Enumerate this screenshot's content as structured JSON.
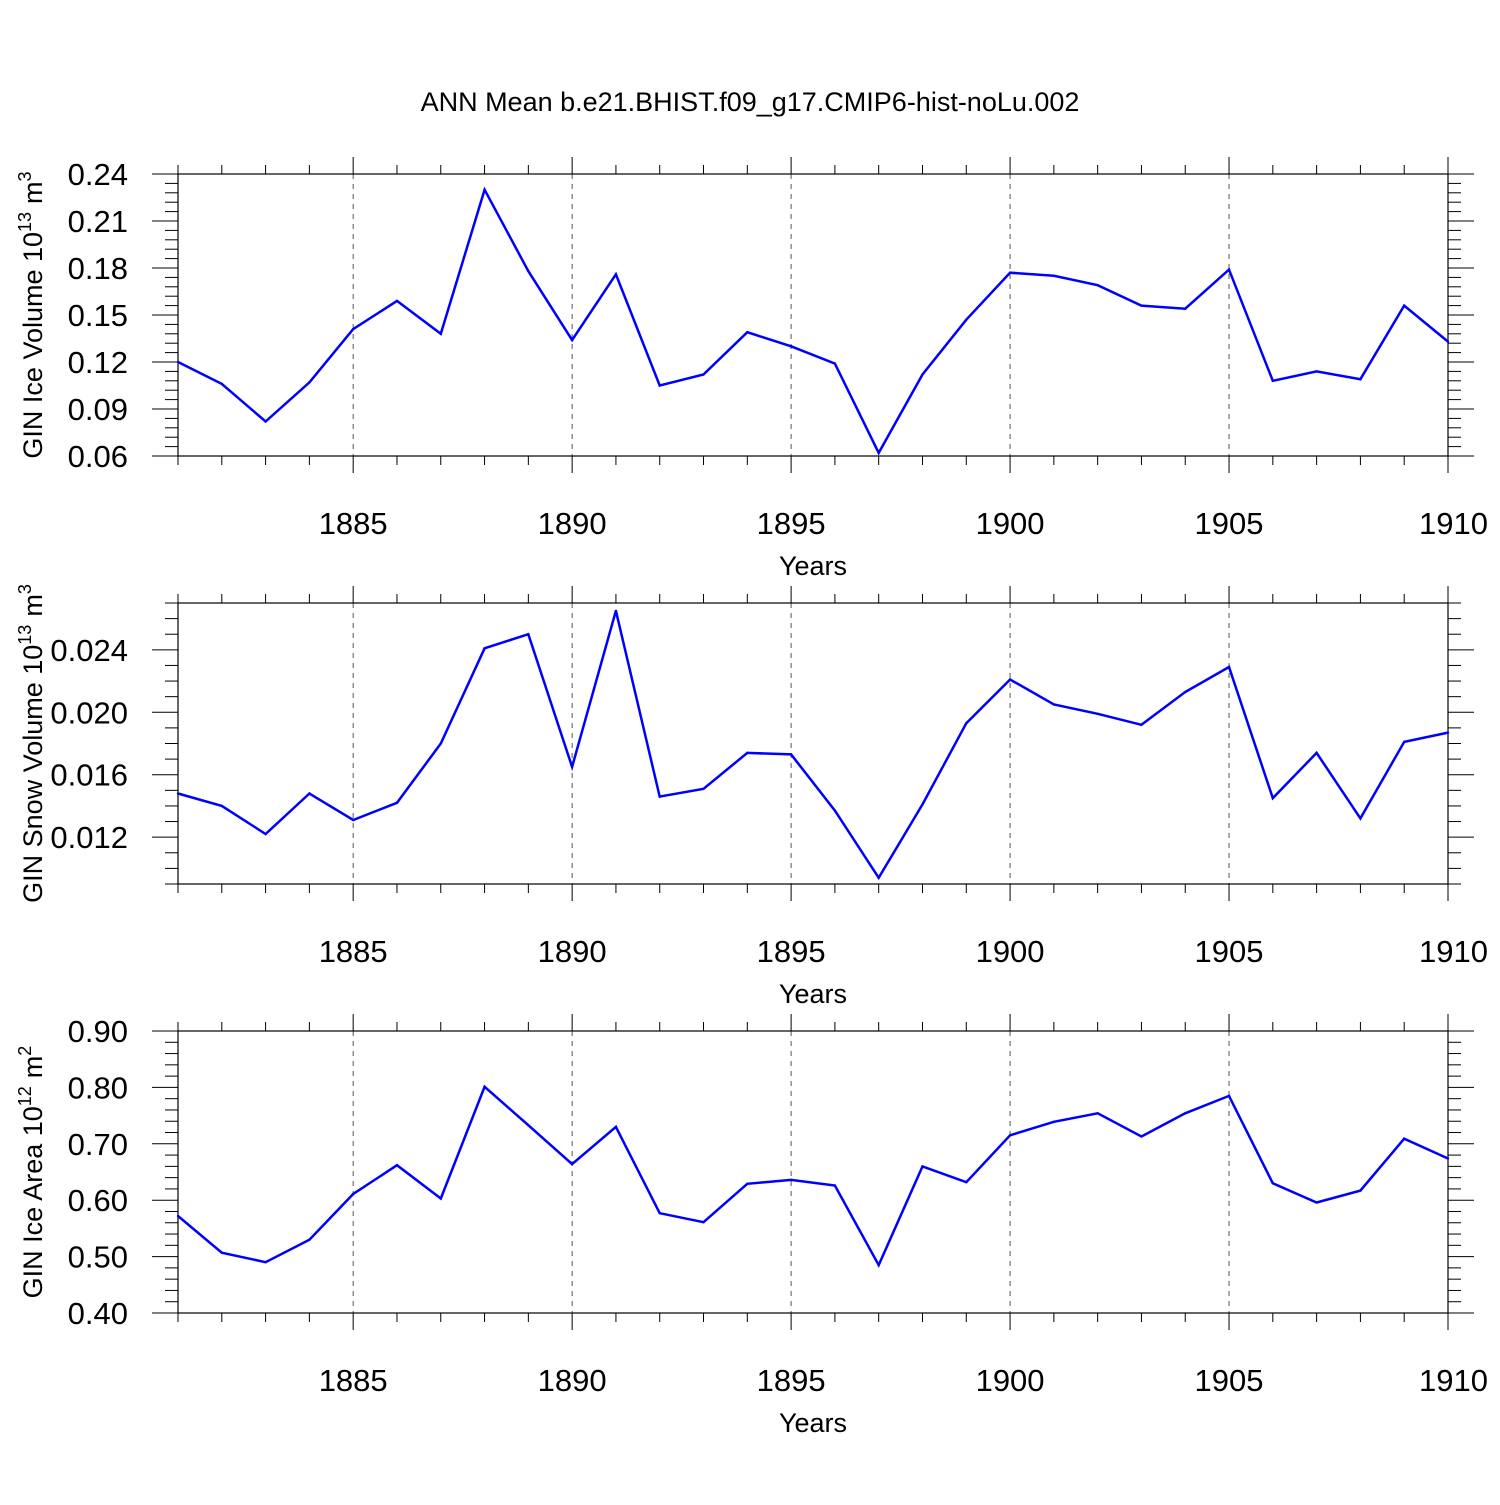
{
  "title": "ANN Mean b.e21.BHIST.f09_g17.CMIP6-hist-noLu.002",
  "colors": {
    "series": "#0000ff",
    "axis": "#000000",
    "grid": "#555555"
  },
  "chart_data": [
    {
      "type": "line",
      "ylabel": "GIN Ice Volume 10",
      "ylabel_exp": "13",
      "ylabel_unit": "m",
      "ylabel_unit_exp": "3",
      "xlabel": "Years",
      "xlim": [
        1881,
        1910
      ],
      "ylim": [
        0.06,
        0.24
      ],
      "xticks": [
        1885,
        1890,
        1895,
        1900,
        1905,
        1910
      ],
      "xtick_labels": [
        "1885",
        "1890",
        "1895",
        "1900",
        "1905",
        "1910"
      ],
      "yticks": [
        0.06,
        0.09,
        0.12,
        0.15,
        0.18,
        0.21,
        0.24
      ],
      "ytick_labels": [
        "0.06",
        "0.09",
        "0.12",
        "0.15",
        "0.18",
        "0.21",
        "0.24"
      ],
      "minor_ystep": 0.006,
      "grid": "vertical dashed at major x ticks",
      "x": [
        1881,
        1882,
        1883,
        1884,
        1885,
        1886,
        1887,
        1888,
        1889,
        1890,
        1891,
        1892,
        1893,
        1894,
        1895,
        1896,
        1897,
        1898,
        1899,
        1900,
        1901,
        1902,
        1903,
        1904,
        1905,
        1906,
        1907,
        1908,
        1909,
        1910
      ],
      "values": [
        0.12,
        0.106,
        0.082,
        0.107,
        0.141,
        0.159,
        0.138,
        0.23,
        0.178,
        0.134,
        0.176,
        0.105,
        0.112,
        0.139,
        0.13,
        0.119,
        0.062,
        0.112,
        0.147,
        0.177,
        0.175,
        0.169,
        0.156,
        0.154,
        0.179,
        0.108,
        0.114,
        0.109,
        0.156,
        0.133
      ]
    },
    {
      "type": "line",
      "ylabel": "GIN Snow Volume 10",
      "ylabel_exp": "13",
      "ylabel_unit": "m",
      "ylabel_unit_exp": "3",
      "xlabel": "Years",
      "xlim": [
        1881,
        1910
      ],
      "ylim": [
        0.009,
        0.027
      ],
      "xticks": [
        1885,
        1890,
        1895,
        1900,
        1905,
        1910
      ],
      "xtick_labels": [
        "1885",
        "1890",
        "1895",
        "1900",
        "1905",
        "1910"
      ],
      "yticks": [
        0.012,
        0.016,
        0.02,
        0.024
      ],
      "ytick_labels": [
        "0.012",
        "0.016",
        "0.020",
        "0.024"
      ],
      "minor_ystep": 0.001,
      "grid": "vertical dashed at major x ticks",
      "x": [
        1881,
        1882,
        1883,
        1884,
        1885,
        1886,
        1887,
        1888,
        1889,
        1890,
        1891,
        1892,
        1893,
        1894,
        1895,
        1896,
        1897,
        1898,
        1899,
        1900,
        1901,
        1902,
        1903,
        1904,
        1905,
        1906,
        1907,
        1908,
        1909,
        1910
      ],
      "values": [
        0.0148,
        0.014,
        0.0122,
        0.0148,
        0.0131,
        0.0142,
        0.018,
        0.0241,
        0.025,
        0.0165,
        0.0265,
        0.0146,
        0.0151,
        0.0174,
        0.0173,
        0.0137,
        0.0094,
        0.0141,
        0.0193,
        0.0221,
        0.0205,
        0.0199,
        0.0192,
        0.0213,
        0.0229,
        0.0145,
        0.0174,
        0.0132,
        0.0181,
        0.0187
      ]
    },
    {
      "type": "line",
      "ylabel": "GIN Ice Area 10",
      "ylabel_exp": "12",
      "ylabel_unit": "m",
      "ylabel_unit_exp": "2",
      "xlabel": "Years",
      "xlim": [
        1881,
        1910
      ],
      "ylim": [
        0.4,
        0.9
      ],
      "xticks": [
        1885,
        1890,
        1895,
        1900,
        1905,
        1910
      ],
      "xtick_labels": [
        "1885",
        "1890",
        "1895",
        "1900",
        "1905",
        "1910"
      ],
      "yticks": [
        0.4,
        0.5,
        0.6,
        0.7,
        0.8,
        0.9
      ],
      "ytick_labels": [
        "0.40",
        "0.50",
        "0.60",
        "0.70",
        "0.80",
        "0.90"
      ],
      "minor_ystep": 0.02,
      "grid": "vertical dashed at major x ticks",
      "x": [
        1881,
        1882,
        1883,
        1884,
        1885,
        1886,
        1887,
        1888,
        1889,
        1890,
        1891,
        1892,
        1893,
        1894,
        1895,
        1896,
        1897,
        1898,
        1899,
        1900,
        1901,
        1902,
        1903,
        1904,
        1905,
        1906,
        1907,
        1908,
        1909,
        1910
      ],
      "values": [
        0.572,
        0.507,
        0.49,
        0.53,
        0.611,
        0.662,
        0.603,
        0.801,
        0.733,
        0.664,
        0.73,
        0.577,
        0.561,
        0.629,
        0.636,
        0.626,
        0.485,
        0.66,
        0.632,
        0.715,
        0.739,
        0.754,
        0.713,
        0.754,
        0.785,
        0.63,
        0.596,
        0.617,
        0.709,
        0.674
      ]
    }
  ]
}
